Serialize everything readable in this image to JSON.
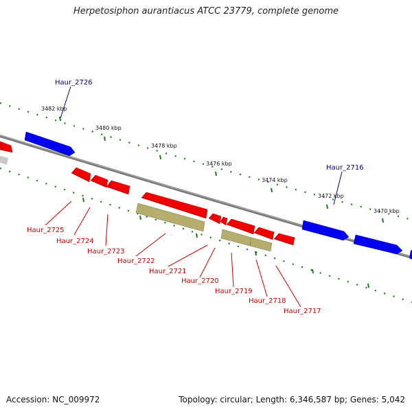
{
  "title": "Herpetosiphon aurantiacus ATCC 23779, complete genome",
  "footer": {
    "accession": "Accession: NC_009972",
    "stats": "Topology: circular; Length: 6,346,587 bp; Genes: 5,042"
  },
  "ticks": [
    "3482 kbp",
    "3480 kbp",
    "3478 kbp",
    "3476 kbp",
    "3474 kbp",
    "3472 kbp",
    "3470 kbp"
  ],
  "genes_plus": [
    "Haur_2726",
    "Haur_2716"
  ],
  "genes_minus": [
    "Haur_2725",
    "Haur_2724",
    "Haur_2723",
    "Haur_2722",
    "Haur_2721",
    "Haur_2720",
    "Haur_2719",
    "Haur_2718",
    "Haur_2717"
  ],
  "colors": {
    "plus_strand": "#0000ee",
    "minus_strand": "#ee0000",
    "rna": "#b5ad6e",
    "backbone": "#808080",
    "ticks": "#1a7a1a",
    "plus_label": "#00008b",
    "minus_label": "#cc0000"
  }
}
